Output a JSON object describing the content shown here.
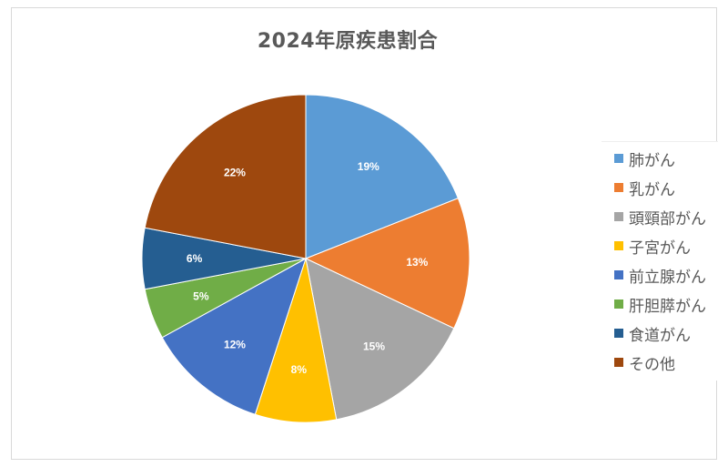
{
  "chart_data": {
    "type": "pie",
    "title": "2024年原疾患割合",
    "categories": [
      "肺がん",
      "乳がん",
      "頭頸部がん",
      "子宮がん",
      "前立腺がん",
      "肝胆膵がん",
      "食道がん",
      "その他"
    ],
    "values": [
      19,
      13,
      15,
      8,
      12,
      5,
      6,
      22
    ],
    "value_labels": [
      "19%",
      "13%",
      "15%",
      "8%",
      "12%",
      "5%",
      "6%",
      "22%"
    ],
    "colors": [
      "#5b9bd5",
      "#ed7d31",
      "#a5a5a5",
      "#ffc000",
      "#4472c4",
      "#70ad47",
      "#255e91",
      "#9e480e"
    ],
    "legend_position": "right"
  }
}
